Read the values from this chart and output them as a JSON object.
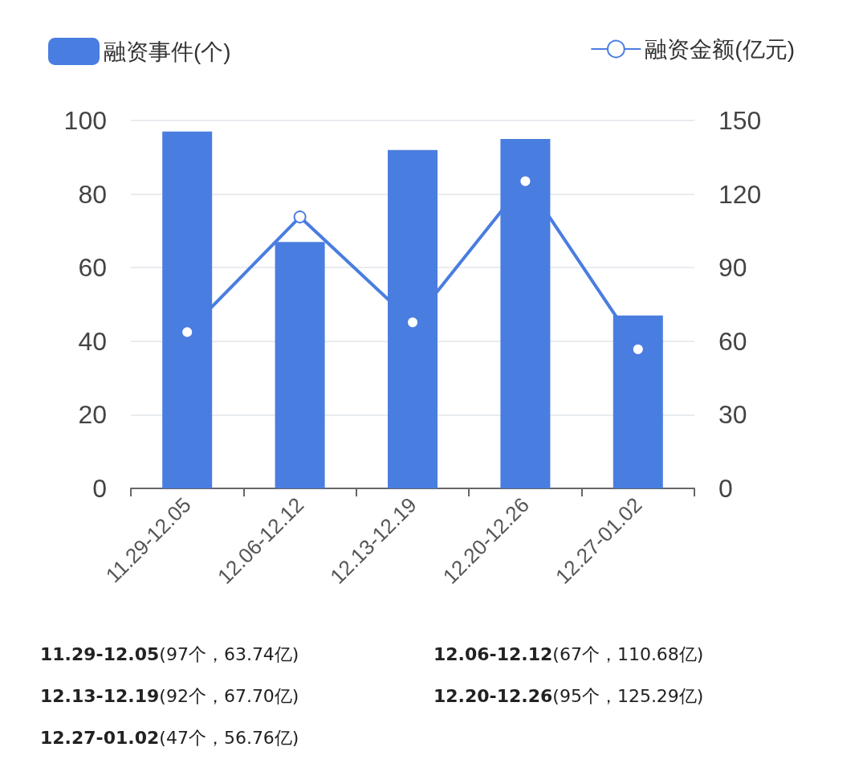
{
  "chart_data": {
    "type": "bar",
    "categories": [
      "11.29-12.05",
      "12.06-12.12",
      "12.13-12.19",
      "12.20-12.26",
      "12.27-01.02"
    ],
    "series": [
      {
        "name": "融资事件(个)",
        "color": "#4a7de0",
        "values": [
          97,
          67,
          92,
          95,
          47
        ]
      },
      {
        "name": "融资金额(亿元)",
        "type": "line",
        "axis": "y2",
        "color": "#4a7de0",
        "values": [
          63.74,
          110.68,
          67.7,
          125.29,
          56.76
        ]
      }
    ],
    "ylim": [
      0,
      100
    ],
    "yticks": [
      0,
      20,
      40,
      60,
      80,
      100
    ],
    "y2lim": [
      0,
      150
    ],
    "y2ticks": [
      0,
      30,
      60,
      90,
      120,
      150
    ],
    "grid": "y",
    "legend": "top",
    "marker": "circle",
    "line_style": "solid",
    "annotations": [
      "11.29-12.05(97个，63.74亿)",
      "12.06-12.12(67个，110.68亿)",
      "12.13-12.19(92个，67.70亿)",
      "12.20-12.26(95个，125.29亿)",
      "12.27-01.02(47个，56.76亿)"
    ]
  }
}
